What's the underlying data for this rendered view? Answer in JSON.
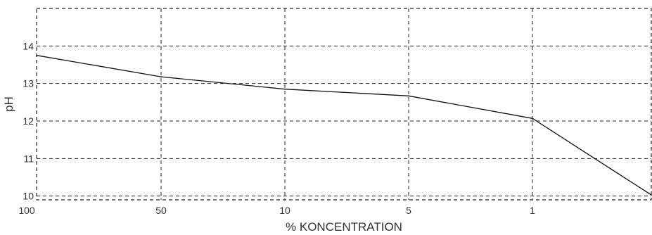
{
  "chart_data": {
    "type": "line",
    "title": "",
    "xlabel": "% KONCENTRATION",
    "ylabel": "pH",
    "x_ticks": [
      "100",
      "50",
      "10",
      "5",
      "1"
    ],
    "y_ticks": [
      10,
      11,
      12,
      13,
      14
    ],
    "ylim": [
      9.9,
      15
    ],
    "grid": true,
    "series": [
      {
        "x": [
          "100",
          "50",
          "10",
          "5",
          "1",
          "0.1"
        ],
        "values": [
          13.75,
          13.18,
          12.85,
          12.67,
          12.07,
          10.03
        ]
      }
    ],
    "colors": {
      "line": "#111111",
      "grid": "#222222",
      "text": "#333333"
    }
  }
}
